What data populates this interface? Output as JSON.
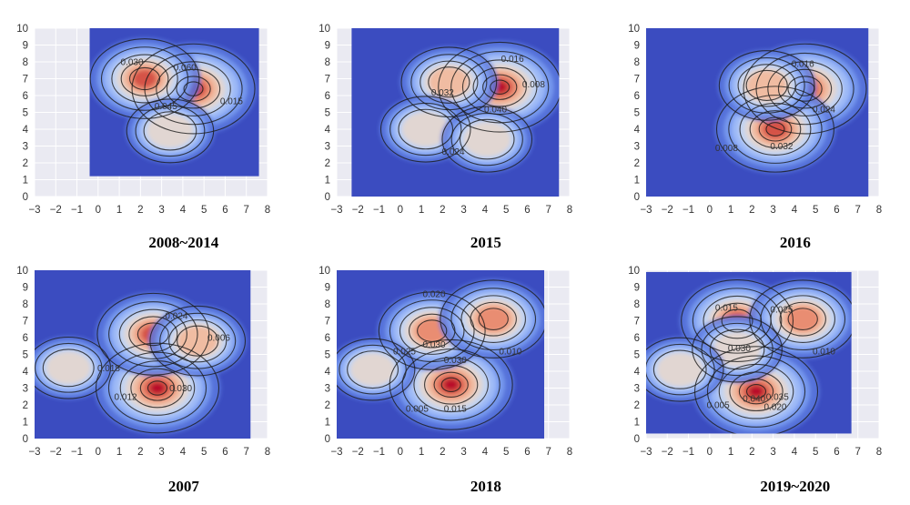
{
  "colors": {
    "axes_background": "#eaeaf2",
    "grid": "#ffffff",
    "kde_fill_low": "#3b4cc0",
    "kde_fill_high": "#b40426",
    "contour_line": "#1a1a1a"
  },
  "chart_data": [
    {
      "type": "kde_contour",
      "title": "2008~2014",
      "xlim": [
        -3,
        8
      ],
      "ylim": [
        0,
        10
      ],
      "xticks": [
        "−3",
        "−2",
        "−1",
        "0",
        "1",
        "2",
        "3",
        "4",
        "5",
        "6",
        "7",
        "8"
      ],
      "yticks": [
        "0",
        "1",
        "2",
        "3",
        "4",
        "5",
        "6",
        "7",
        "8",
        "9",
        "10"
      ],
      "colormap": "coolwarm",
      "grid": true,
      "density_extent": {
        "x": [
          -0.4,
          7.6
        ],
        "y": [
          1.2,
          10
        ]
      },
      "peaks": [
        {
          "x": 4.5,
          "y": 6.4,
          "weight": 1.0
        },
        {
          "x": 2.2,
          "y": 7.0,
          "weight": 0.75
        },
        {
          "x": 3.4,
          "y": 3.9,
          "weight": 0.35
        }
      ],
      "contour_labels": [
        {
          "text": "0.030",
          "x": 1.6,
          "y": 7.8
        },
        {
          "text": "0.060",
          "x": 4.1,
          "y": 7.5
        },
        {
          "text": "0.045",
          "x": 3.2,
          "y": 5.2
        },
        {
          "text": "0.015",
          "x": 6.3,
          "y": 5.5
        }
      ]
    },
    {
      "type": "kde_contour",
      "title": "2015",
      "xlim": [
        -3,
        8
      ],
      "ylim": [
        0,
        10
      ],
      "xticks": [
        "−3",
        "−2",
        "−1",
        "0",
        "1",
        "2",
        "3",
        "4",
        "5",
        "6",
        "7",
        "8"
      ],
      "yticks": [
        "0",
        "1",
        "2",
        "3",
        "4",
        "5",
        "6",
        "7",
        "8",
        "9",
        "10"
      ],
      "colormap": "coolwarm",
      "grid": true,
      "density_extent": {
        "x": [
          -2.3,
          7.5
        ],
        "y": [
          -0.5,
          10.5
        ]
      },
      "peaks": [
        {
          "x": 4.7,
          "y": 6.5,
          "weight": 1.0
        },
        {
          "x": 2.3,
          "y": 6.8,
          "weight": 0.5
        },
        {
          "x": 1.2,
          "y": 4.0,
          "weight": 0.4
        },
        {
          "x": 4.1,
          "y": 3.4,
          "weight": 0.4
        }
      ],
      "contour_labels": [
        {
          "text": "0.016",
          "x": 5.3,
          "y": 8.0
        },
        {
          "text": "0.032",
          "x": 2.0,
          "y": 6.0
        },
        {
          "text": "0.040",
          "x": 4.5,
          "y": 5.0
        },
        {
          "text": "0.008",
          "x": 6.3,
          "y": 6.5
        },
        {
          "text": "0.024",
          "x": 2.5,
          "y": 2.5
        }
      ]
    },
    {
      "type": "kde_contour",
      "title": "2016",
      "xlim": [
        -3,
        8
      ],
      "ylim": [
        0,
        10
      ],
      "xticks": [
        "−3",
        "−2",
        "−1",
        "0",
        "1",
        "2",
        "3",
        "4",
        "5",
        "6",
        "7",
        "8"
      ],
      "yticks": [
        "0",
        "1",
        "2",
        "3",
        "4",
        "5",
        "6",
        "7",
        "8",
        "9",
        "10"
      ],
      "colormap": "coolwarm",
      "grid": true,
      "density_extent": {
        "x": [
          -3.5,
          7.5
        ],
        "y": [
          0,
          10.5
        ]
      },
      "peaks": [
        {
          "x": 4.5,
          "y": 6.4,
          "weight": 1.0
        },
        {
          "x": 3.1,
          "y": 4.0,
          "weight": 0.9
        },
        {
          "x": 2.7,
          "y": 6.6,
          "weight": 0.5
        }
      ],
      "contour_labels": [
        {
          "text": "0.016",
          "x": 4.4,
          "y": 7.7
        },
        {
          "text": "0.024",
          "x": 5.4,
          "y": 5.0
        },
        {
          "text": "0.008",
          "x": 0.8,
          "y": 2.7
        },
        {
          "text": "0.032",
          "x": 3.4,
          "y": 2.8
        }
      ]
    },
    {
      "type": "kde_contour",
      "title": "2007",
      "xlim": [
        -3,
        8
      ],
      "ylim": [
        0,
        10
      ],
      "xticks": [
        "−3",
        "−2",
        "−1",
        "0",
        "1",
        "2",
        "3",
        "4",
        "5",
        "6",
        "7",
        "8"
      ],
      "yticks": [
        "0",
        "1",
        "2",
        "3",
        "4",
        "5",
        "6",
        "7",
        "8",
        "9",
        "10"
      ],
      "colormap": "coolwarm",
      "grid": true,
      "density_extent": {
        "x": [
          -3,
          7.2
        ],
        "y": [
          0,
          10
        ]
      },
      "peaks": [
        {
          "x": 2.8,
          "y": 3.0,
          "weight": 1.0
        },
        {
          "x": 2.6,
          "y": 6.2,
          "weight": 0.8
        },
        {
          "x": 4.7,
          "y": 5.8,
          "weight": 0.5
        },
        {
          "x": -1.4,
          "y": 4.2,
          "weight": 0.3
        }
      ],
      "contour_labels": [
        {
          "text": "0.024",
          "x": 3.7,
          "y": 7.1
        },
        {
          "text": "0.006",
          "x": 5.7,
          "y": 5.8
        },
        {
          "text": "0.018",
          "x": 0.5,
          "y": 4.0
        },
        {
          "text": "0.012",
          "x": 1.3,
          "y": 2.3
        },
        {
          "text": "0.030",
          "x": 3.9,
          "y": 2.8
        }
      ]
    },
    {
      "type": "kde_contour",
      "title": "2018",
      "xlim": [
        -3,
        8
      ],
      "ylim": [
        0,
        10
      ],
      "xticks": [
        "−3",
        "−2",
        "−1",
        "0",
        "1",
        "2",
        "3",
        "4",
        "5",
        "6",
        "7",
        "8"
      ],
      "yticks": [
        "0",
        "1",
        "2",
        "3",
        "4",
        "5",
        "6",
        "7",
        "8",
        "9",
        "10"
      ],
      "colormap": "coolwarm",
      "grid": true,
      "density_extent": {
        "x": [
          -3,
          6.8
        ],
        "y": [
          0,
          10
        ]
      },
      "peaks": [
        {
          "x": 2.4,
          "y": 3.2,
          "weight": 1.0
        },
        {
          "x": 1.5,
          "y": 6.4,
          "weight": 0.7
        },
        {
          "x": 4.4,
          "y": 7.1,
          "weight": 0.7
        },
        {
          "x": -1.3,
          "y": 4.1,
          "weight": 0.3
        }
      ],
      "contour_labels": [
        {
          "text": "0.020",
          "x": 1.6,
          "y": 8.4
        },
        {
          "text": "0.030",
          "x": 1.6,
          "y": 5.4
        },
        {
          "text": "0.030",
          "x": 2.6,
          "y": 4.5
        },
        {
          "text": "0.025",
          "x": 0.2,
          "y": 5.0
        },
        {
          "text": "0.010",
          "x": 5.2,
          "y": 5.0
        },
        {
          "text": "0.005",
          "x": 0.8,
          "y": 1.6
        },
        {
          "text": "0.015",
          "x": 2.6,
          "y": 1.6
        }
      ]
    },
    {
      "type": "kde_contour",
      "title": "2019~2020",
      "xlim": [
        -3,
        8
      ],
      "ylim": [
        0,
        10
      ],
      "xticks": [
        "−3",
        "−2",
        "−1",
        "0",
        "1",
        "2",
        "3",
        "4",
        "5",
        "6",
        "7",
        "8"
      ],
      "yticks": [
        "0",
        "1",
        "2",
        "3",
        "4",
        "5",
        "6",
        "7",
        "8",
        "9",
        "10"
      ],
      "colormap": "coolwarm",
      "grid": true,
      "density_extent": {
        "x": [
          -3,
          6.7
        ],
        "y": [
          0.3,
          9.9
        ]
      },
      "peaks": [
        {
          "x": 2.2,
          "y": 2.8,
          "weight": 1.0
        },
        {
          "x": 1.3,
          "y": 7.0,
          "weight": 0.8
        },
        {
          "x": 4.4,
          "y": 7.1,
          "weight": 0.7
        },
        {
          "x": 1.3,
          "y": 5.3,
          "weight": 0.4
        },
        {
          "x": -1.4,
          "y": 4.1,
          "weight": 0.35
        }
      ],
      "contour_labels": [
        {
          "text": "0.015",
          "x": 0.8,
          "y": 7.6
        },
        {
          "text": "0.025",
          "x": 3.4,
          "y": 7.5
        },
        {
          "text": "0.030",
          "x": 1.4,
          "y": 5.2
        },
        {
          "text": "0.010",
          "x": 5.4,
          "y": 5.0
        },
        {
          "text": "0.005",
          "x": 0.4,
          "y": 1.8
        },
        {
          "text": "0.040",
          "x": 2.1,
          "y": 2.2
        },
        {
          "text": "0.035",
          "x": 3.2,
          "y": 2.3
        },
        {
          "text": "0.020",
          "x": 3.1,
          "y": 1.7
        }
      ]
    }
  ]
}
